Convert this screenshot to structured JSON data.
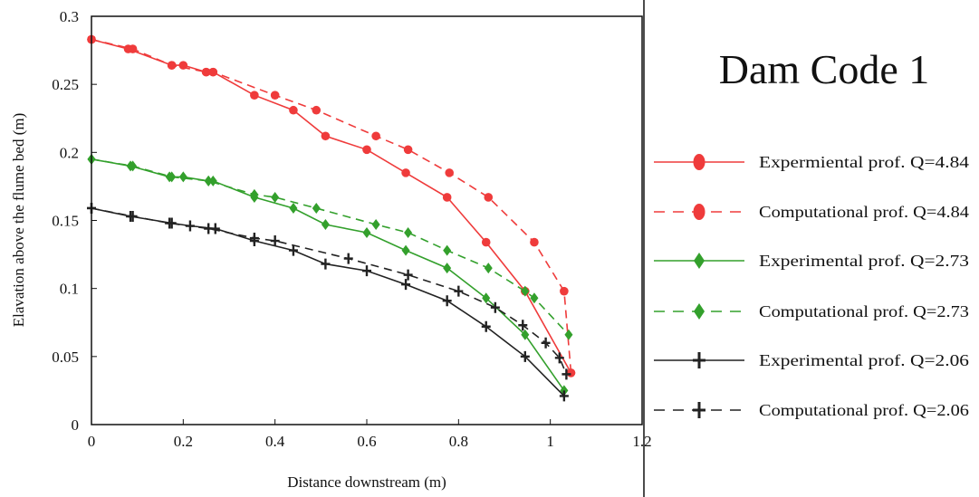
{
  "chart_data": {
    "type": "line",
    "title": "",
    "legend_title": "Dam Code 1",
    "xlabel": "Distance downstream (m)",
    "ylabel": "Elavation above the flume bed (m)",
    "xlim": [
      0,
      1.2
    ],
    "ylim": [
      0,
      0.3
    ],
    "xticks": [
      "0",
      "0.2",
      "0.4",
      "0.6",
      "0.8",
      "1",
      "1.2"
    ],
    "yticks": [
      "0",
      "0.05",
      "0.1",
      "0.15",
      "0.2",
      "0.25",
      "0.3"
    ],
    "grid": false,
    "legend_position": "right",
    "series": [
      {
        "name": "Expermiental prof. Q=4.84",
        "color": "#ef3b3b",
        "dash": "solid",
        "marker": "circle",
        "x": [
          0,
          0.08,
          0.175,
          0.2,
          0.25,
          0.265,
          0.355,
          0.44,
          0.51,
          0.6,
          0.685,
          0.775,
          0.86,
          0.945,
          1.045
        ],
        "y": [
          0.283,
          0.276,
          0.264,
          0.264,
          0.259,
          0.259,
          0.242,
          0.231,
          0.212,
          0.202,
          0.185,
          0.167,
          0.134,
          0.098,
          0.038
        ]
      },
      {
        "name": "Computational prof. Q=4.84",
        "color": "#ef3b3b",
        "dash": "dashed",
        "marker": "circle",
        "x": [
          0,
          0.09,
          0.175,
          0.25,
          0.265,
          0.4,
          0.49,
          0.62,
          0.69,
          0.78,
          0.865,
          0.965,
          1.03,
          1.045
        ],
        "y": [
          0.283,
          0.276,
          0.264,
          0.259,
          0.259,
          0.242,
          0.231,
          0.212,
          0.202,
          0.185,
          0.167,
          0.134,
          0.098,
          0.038
        ]
      },
      {
        "name": "Experimental prof. Q=2.73",
        "color": "#33a02c",
        "dash": "solid",
        "marker": "diamond",
        "x": [
          0,
          0.085,
          0.17,
          0.2,
          0.255,
          0.265,
          0.355,
          0.44,
          0.51,
          0.6,
          0.685,
          0.775,
          0.86,
          0.945,
          1.03
        ],
        "y": [
          0.195,
          0.19,
          0.182,
          0.182,
          0.179,
          0.179,
          0.167,
          0.159,
          0.147,
          0.141,
          0.128,
          0.115,
          0.093,
          0.066,
          0.025
        ]
      },
      {
        "name": "Computational prof. Q=2.73",
        "color": "#33a02c",
        "dash": "dashed",
        "marker": "diamond",
        "x": [
          0,
          0.09,
          0.175,
          0.255,
          0.355,
          0.4,
          0.49,
          0.62,
          0.69,
          0.775,
          0.865,
          0.945,
          0.965,
          1.04
        ],
        "y": [
          0.195,
          0.19,
          0.182,
          0.179,
          0.169,
          0.167,
          0.159,
          0.147,
          0.141,
          0.128,
          0.115,
          0.098,
          0.093,
          0.066
        ]
      },
      {
        "name": "Experimental prof. Q=2.06",
        "color": "#222222",
        "dash": "solid",
        "marker": "plus",
        "x": [
          0,
          0.085,
          0.175,
          0.215,
          0.27,
          0.355,
          0.44,
          0.51,
          0.6,
          0.685,
          0.775,
          0.86,
          0.945,
          1.03
        ],
        "y": [
          0.159,
          0.153,
          0.148,
          0.146,
          0.144,
          0.135,
          0.128,
          0.118,
          0.113,
          0.103,
          0.091,
          0.072,
          0.05,
          0.021
        ]
      },
      {
        "name": "Computational prof. Q=2.06",
        "color": "#222222",
        "dash": "dashed",
        "marker": "plus",
        "x": [
          0,
          0.09,
          0.17,
          0.255,
          0.355,
          0.4,
          0.56,
          0.69,
          0.8,
          0.88,
          0.94,
          0.99,
          1.02,
          1.035
        ],
        "y": [
          0.159,
          0.153,
          0.148,
          0.144,
          0.137,
          0.135,
          0.122,
          0.11,
          0.098,
          0.086,
          0.073,
          0.06,
          0.049,
          0.037
        ]
      }
    ]
  }
}
